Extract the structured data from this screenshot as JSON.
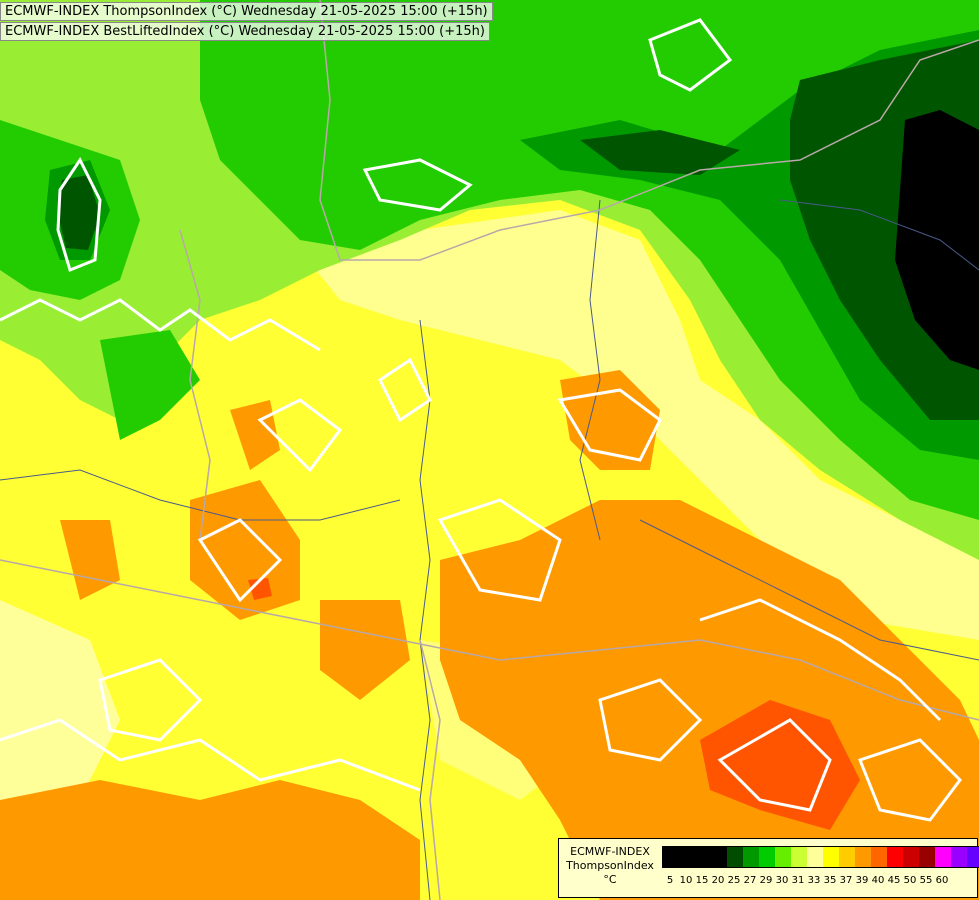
{
  "titles": {
    "line1": "ECMWF-INDEX ThompsonIndex (°C) Wednesday 21-05-2025 15:00 (+15h)",
    "line2": "ECMWF-INDEX BestLiftedIndex (°C) Wednesday 21-05-2025 15:00 (+15h)"
  },
  "legend": {
    "title_line1": "ECMWF-INDEX",
    "title_line2": "ThompsonIndex",
    "unit": "°C",
    "colors": [
      "#000000",
      "#000000",
      "#000000",
      "#000000",
      "#004d00",
      "#009900",
      "#00cc00",
      "#66ee00",
      "#ccff33",
      "#ffff99",
      "#ffff00",
      "#ffcc00",
      "#ff9900",
      "#ff6600",
      "#ff0000",
      "#cc0000",
      "#990000",
      "#ff00ff",
      "#9900ff",
      "#6600ff",
      "#0000ff"
    ],
    "ticks": [
      "5",
      "10",
      "15",
      "20",
      "25",
      "27",
      "29",
      "30",
      "31",
      "33",
      "35",
      "37",
      "39",
      "40",
      "45",
      "50",
      "55",
      "60"
    ]
  },
  "colors": {
    "background": "#ffff33",
    "pale_yellow": "#ffff99",
    "light_green": "#99ee33",
    "green": "#22cc00",
    "mid_green": "#009900",
    "dark_green": "#005500",
    "black_core": "#000000",
    "orange": "#ff9900",
    "red_orange": "#ff5500",
    "contour": "#ffffff",
    "border": "#b8a8a8",
    "river": "#4a5a8a"
  }
}
